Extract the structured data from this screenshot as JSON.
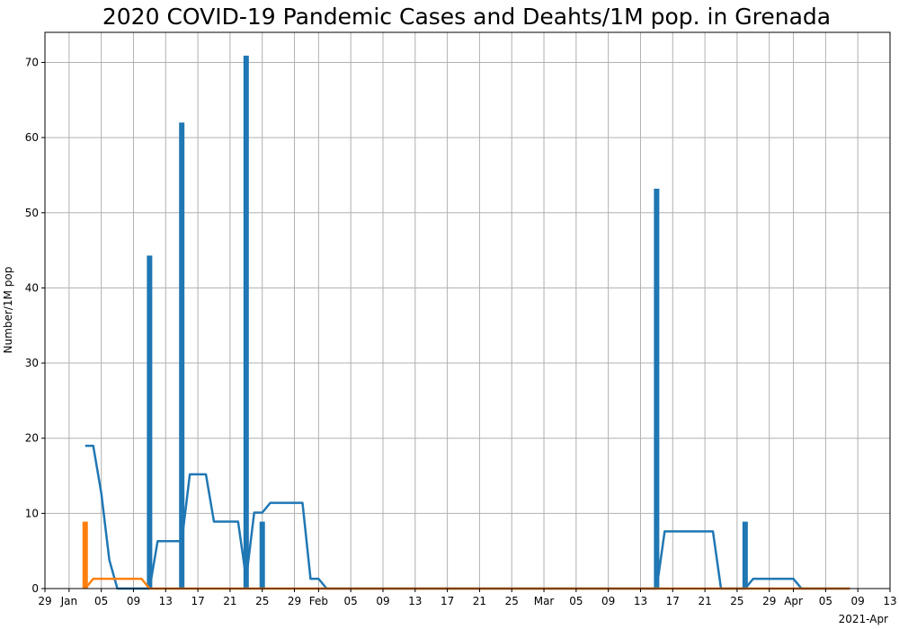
{
  "chart_data": {
    "type": "bar",
    "title": "2020 COVID-19 Pandemic Cases and Deahts/1M pop. in Grenada",
    "xlabel": "",
    "ylabel": "Number/1M pop",
    "x_offset_label": "2021-Apr",
    "x_unit": "day",
    "x_range": [
      "2020-12-29",
      "2021-04-13"
    ],
    "ylim": [
      0,
      74
    ],
    "y_ticks": [
      0,
      10,
      20,
      30,
      40,
      50,
      60,
      70
    ],
    "x_ticks": [
      {
        "date": "2020-12-29",
        "label": "29"
      },
      {
        "date": "2021-01-01",
        "label": "Jan"
      },
      {
        "date": "2021-01-05",
        "label": "05"
      },
      {
        "date": "2021-01-09",
        "label": "09"
      },
      {
        "date": "2021-01-13",
        "label": "13"
      },
      {
        "date": "2021-01-17",
        "label": "17"
      },
      {
        "date": "2021-01-21",
        "label": "21"
      },
      {
        "date": "2021-01-25",
        "label": "25"
      },
      {
        "date": "2021-01-29",
        "label": "29"
      },
      {
        "date": "2021-02-01",
        "label": "Feb"
      },
      {
        "date": "2021-02-05",
        "label": "05"
      },
      {
        "date": "2021-02-09",
        "label": "09"
      },
      {
        "date": "2021-02-13",
        "label": "13"
      },
      {
        "date": "2021-02-17",
        "label": "17"
      },
      {
        "date": "2021-02-21",
        "label": "21"
      },
      {
        "date": "2021-02-25",
        "label": "25"
      },
      {
        "date": "2021-03-01",
        "label": "Mar"
      },
      {
        "date": "2021-03-05",
        "label": "05"
      },
      {
        "date": "2021-03-09",
        "label": "09"
      },
      {
        "date": "2021-03-13",
        "label": "13"
      },
      {
        "date": "2021-03-17",
        "label": "17"
      },
      {
        "date": "2021-03-21",
        "label": "21"
      },
      {
        "date": "2021-03-25",
        "label": "25"
      },
      {
        "date": "2021-03-29",
        "label": "29"
      },
      {
        "date": "2021-04-01",
        "label": "Apr"
      },
      {
        "date": "2021-04-05",
        "label": "05"
      },
      {
        "date": "2021-04-09",
        "label": "09"
      },
      {
        "date": "2021-04-13",
        "label": "13"
      }
    ],
    "grid": true,
    "colors": {
      "cases": "#1f77b4",
      "deaths": "#ff7f0e"
    },
    "series": [
      {
        "kind": "bar",
        "color": "#1f77b4",
        "points": [
          [
            "2021-01-11",
            44.3
          ],
          [
            "2021-01-15",
            62.0
          ],
          [
            "2021-01-23",
            70.9
          ],
          [
            "2021-01-25",
            8.9
          ],
          [
            "2021-03-15",
            53.2
          ],
          [
            "2021-03-26",
            8.9
          ]
        ]
      },
      {
        "kind": "bar",
        "color": "#ff7f0e",
        "points": [
          [
            "2021-01-03",
            8.9
          ]
        ]
      },
      {
        "kind": "line",
        "color": "#1f77b4",
        "points": [
          [
            "2021-01-03",
            19.0
          ],
          [
            "2021-01-04",
            19.0
          ],
          [
            "2021-01-05",
            12.7
          ],
          [
            "2021-01-06",
            3.8
          ],
          [
            "2021-01-07",
            0.0
          ],
          [
            "2021-01-10",
            0.0
          ],
          [
            "2021-01-11",
            0.0
          ],
          [
            "2021-01-12",
            6.3
          ],
          [
            "2021-01-15",
            6.3
          ],
          [
            "2021-01-16",
            15.2
          ],
          [
            "2021-01-18",
            15.2
          ],
          [
            "2021-01-19",
            8.9
          ],
          [
            "2021-01-22",
            8.9
          ],
          [
            "2021-01-23",
            1.3
          ],
          [
            "2021-01-24",
            10.1
          ],
          [
            "2021-01-25",
            10.1
          ],
          [
            "2021-01-26",
            11.4
          ],
          [
            "2021-01-30",
            11.4
          ],
          [
            "2021-01-31",
            1.3
          ],
          [
            "2021-02-01",
            1.3
          ],
          [
            "2021-02-02",
            0.0
          ],
          [
            "2021-03-14",
            0.0
          ],
          [
            "2021-03-15",
            0.0
          ],
          [
            "2021-03-16",
            7.6
          ],
          [
            "2021-03-22",
            7.6
          ],
          [
            "2021-03-23",
            0.0
          ],
          [
            "2021-03-26",
            0.0
          ],
          [
            "2021-03-27",
            1.3
          ],
          [
            "2021-04-01",
            1.3
          ],
          [
            "2021-04-02",
            0.0
          ],
          [
            "2021-04-08",
            0.0
          ]
        ]
      },
      {
        "kind": "line",
        "color": "#ff7f0e",
        "points": [
          [
            "2021-01-03",
            0.0
          ],
          [
            "2021-01-04",
            1.3
          ],
          [
            "2021-01-10",
            1.3
          ],
          [
            "2021-01-11",
            0.0
          ],
          [
            "2021-04-08",
            0.0
          ]
        ]
      }
    ]
  }
}
